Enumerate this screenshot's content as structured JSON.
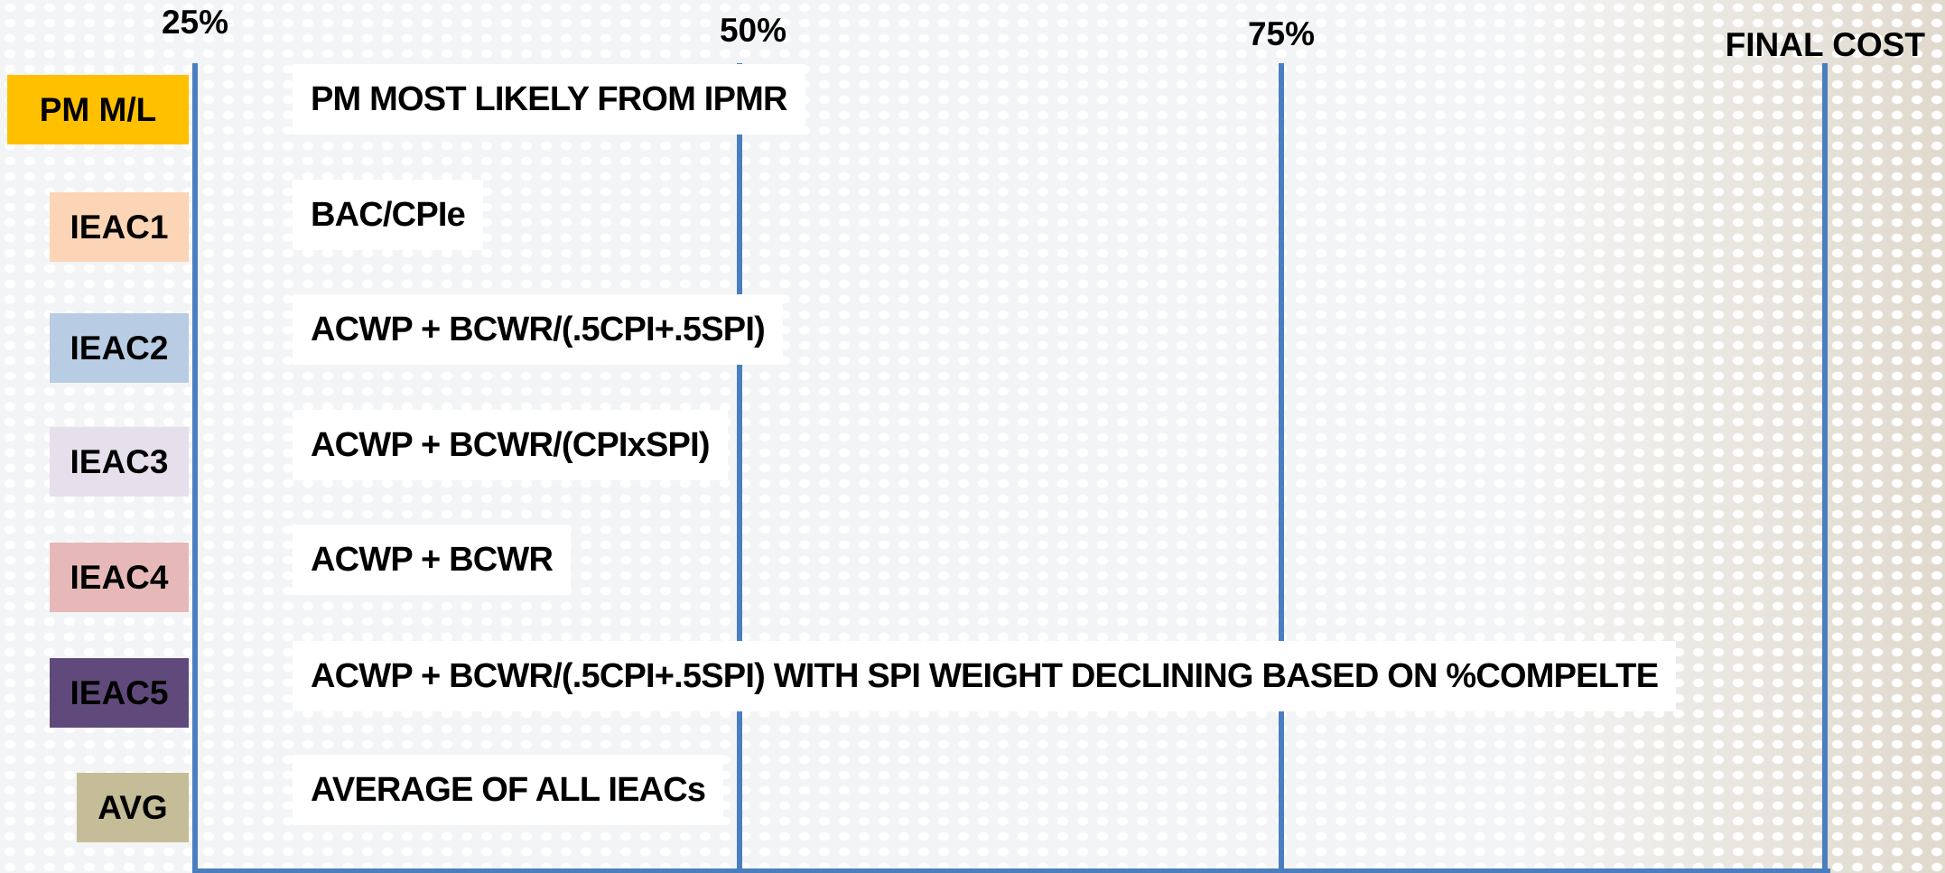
{
  "columns": [
    "25%",
    "50%",
    "75%",
    "FINAL COST"
  ],
  "rows": [
    {
      "label": "PM M/L",
      "description": "PM MOST LIKELY FROM IPMR"
    },
    {
      "label": "IEAC1",
      "description": "BAC/CPIe"
    },
    {
      "label": "IEAC2",
      "description": "ACWP + BCWR/(.5CPI+.5SPI)"
    },
    {
      "label": "IEAC3",
      "description": "ACWP + BCWR/(CPIxSPI)"
    },
    {
      "label": "IEAC4",
      "description": "ACWP + BCWR"
    },
    {
      "label": "IEAC5",
      "description": "ACWP + BCWR/(.5CPI+.5SPI) WITH SPI WEIGHT DECLINING BASED ON %COMPELTE"
    },
    {
      "label": "AVG",
      "description": "AVERAGE OF ALL IEACs"
    }
  ]
}
